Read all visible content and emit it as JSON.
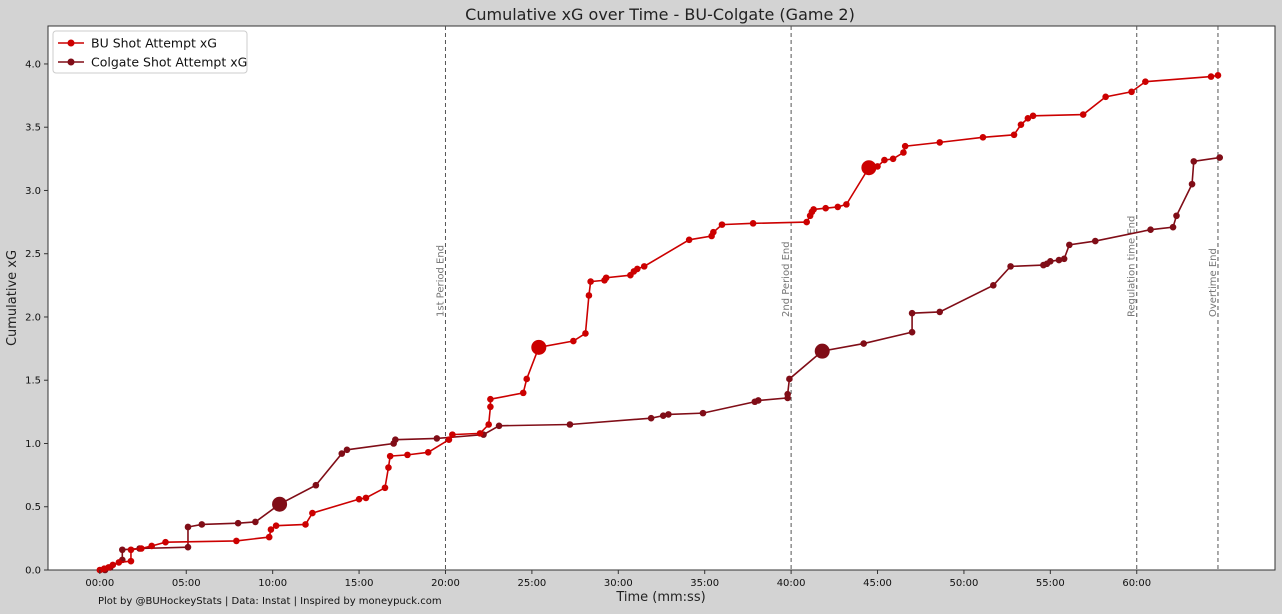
{
  "chart_data": {
    "type": "line",
    "title": "Cumulative xG over Time - BU-Colgate (Game 2)",
    "xlabel": "Time (mm:ss)",
    "ylabel": "Cumulative xG",
    "x_unit": "minutes",
    "xlim": [
      -3.0,
      68.0
    ],
    "ylim": [
      0,
      4.3
    ],
    "x_tick_values": [
      0,
      5,
      10,
      15,
      20,
      25,
      30,
      35,
      40,
      45,
      50,
      55,
      60
    ],
    "x_tick_labels": [
      "00:00",
      "05:00",
      "10:00",
      "15:00",
      "20:00",
      "25:00",
      "30:00",
      "35:00",
      "40:00",
      "45:00",
      "50:00",
      "55:00",
      "60:00"
    ],
    "y_ticks": [
      "0.0",
      "0.5",
      "1.0",
      "1.5",
      "2.0",
      "2.5",
      "3.0",
      "3.5",
      "4.0"
    ],
    "grid": false,
    "legend_position": "top-left",
    "vlines": [
      {
        "x": 20,
        "label": "1st Period End"
      },
      {
        "x": 40,
        "label": "2nd Period End"
      },
      {
        "x": 60,
        "label": "Regulation time End"
      },
      {
        "x": 64.7,
        "label": "Overtime End"
      }
    ],
    "series": [
      {
        "name": "BU Shot Attempt xG",
        "color": "#cc0000",
        "points": [
          [
            0.0,
            0.0
          ],
          [
            0.25,
            0.01
          ],
          [
            0.5,
            0.02
          ],
          [
            0.75,
            0.04
          ],
          [
            1.1,
            0.06
          ],
          [
            1.8,
            0.07
          ],
          [
            1.8,
            0.16
          ],
          [
            2.4,
            0.17
          ],
          [
            3.0,
            0.19
          ],
          [
            3.8,
            0.22
          ],
          [
            7.9,
            0.23
          ],
          [
            9.8,
            0.26
          ],
          [
            9.9,
            0.32
          ],
          [
            10.2,
            0.35
          ],
          [
            11.9,
            0.36
          ],
          [
            12.3,
            0.45
          ],
          [
            15.0,
            0.56
          ],
          [
            15.4,
            0.57
          ],
          [
            16.5,
            0.65
          ],
          [
            16.7,
            0.81
          ],
          [
            16.8,
            0.9
          ],
          [
            17.8,
            0.91
          ],
          [
            19.0,
            0.93
          ],
          [
            20.2,
            1.03
          ],
          [
            20.4,
            1.07
          ],
          [
            22.0,
            1.08
          ],
          [
            22.5,
            1.15
          ],
          [
            22.6,
            1.29
          ],
          [
            22.6,
            1.35
          ],
          [
            24.5,
            1.4
          ],
          [
            24.7,
            1.51
          ],
          [
            25.4,
            1.76
          ],
          [
            27.4,
            1.81
          ],
          [
            28.1,
            1.87
          ],
          [
            28.3,
            2.17
          ],
          [
            28.4,
            2.28
          ],
          [
            29.2,
            2.29
          ],
          [
            29.3,
            2.31
          ],
          [
            30.7,
            2.33
          ],
          [
            30.9,
            2.36
          ],
          [
            31.1,
            2.38
          ],
          [
            31.5,
            2.4
          ],
          [
            34.1,
            2.61
          ],
          [
            35.4,
            2.64
          ],
          [
            35.5,
            2.67
          ],
          [
            36.0,
            2.73
          ],
          [
            37.8,
            2.74
          ],
          [
            40.9,
            2.75
          ],
          [
            41.1,
            2.8
          ],
          [
            41.2,
            2.83
          ],
          [
            41.3,
            2.85
          ],
          [
            42.0,
            2.86
          ],
          [
            42.7,
            2.87
          ],
          [
            43.2,
            2.89
          ],
          [
            44.5,
            3.18
          ],
          [
            45.0,
            3.19
          ],
          [
            45.4,
            3.24
          ],
          [
            45.9,
            3.25
          ],
          [
            46.5,
            3.3
          ],
          [
            46.6,
            3.35
          ],
          [
            48.6,
            3.38
          ],
          [
            51.1,
            3.42
          ],
          [
            52.9,
            3.44
          ],
          [
            53.3,
            3.52
          ],
          [
            53.7,
            3.57
          ],
          [
            54.0,
            3.59
          ],
          [
            56.9,
            3.6
          ],
          [
            58.2,
            3.74
          ],
          [
            59.7,
            3.78
          ],
          [
            60.5,
            3.86
          ],
          [
            64.3,
            3.9
          ],
          [
            64.7,
            3.91
          ]
        ],
        "large_markers": [
          [
            25.4,
            1.76
          ],
          [
            44.5,
            3.18
          ]
        ]
      },
      {
        "name": "Colgate Shot Attempt xG",
        "color": "#800d17",
        "points": [
          [
            0.3,
            0.0
          ],
          [
            0.6,
            0.02
          ],
          [
            1.3,
            0.08
          ],
          [
            1.3,
            0.16
          ],
          [
            2.3,
            0.17
          ],
          [
            5.1,
            0.18
          ],
          [
            5.1,
            0.34
          ],
          [
            5.9,
            0.36
          ],
          [
            8.0,
            0.37
          ],
          [
            9.0,
            0.38
          ],
          [
            10.4,
            0.52
          ],
          [
            12.5,
            0.67
          ],
          [
            14.0,
            0.92
          ],
          [
            14.3,
            0.95
          ],
          [
            17.0,
            1.0
          ],
          [
            17.1,
            1.03
          ],
          [
            19.5,
            1.04
          ],
          [
            22.2,
            1.07
          ],
          [
            23.1,
            1.14
          ],
          [
            27.2,
            1.15
          ],
          [
            31.9,
            1.2
          ],
          [
            32.6,
            1.22
          ],
          [
            32.9,
            1.23
          ],
          [
            34.9,
            1.24
          ],
          [
            37.9,
            1.33
          ],
          [
            38.1,
            1.34
          ],
          [
            39.8,
            1.36
          ],
          [
            39.8,
            1.39
          ],
          [
            39.9,
            1.51
          ],
          [
            41.8,
            1.73
          ],
          [
            44.2,
            1.79
          ],
          [
            47.0,
            1.88
          ],
          [
            47.0,
            2.03
          ],
          [
            48.6,
            2.04
          ],
          [
            51.7,
            2.25
          ],
          [
            52.7,
            2.4
          ],
          [
            54.6,
            2.41
          ],
          [
            54.8,
            2.42
          ],
          [
            55.0,
            2.44
          ],
          [
            55.5,
            2.45
          ],
          [
            55.8,
            2.46
          ],
          [
            56.1,
            2.57
          ],
          [
            57.6,
            2.6
          ],
          [
            60.8,
            2.69
          ],
          [
            62.1,
            2.71
          ],
          [
            62.3,
            2.8
          ],
          [
            63.2,
            3.05
          ],
          [
            63.3,
            3.23
          ],
          [
            64.8,
            3.26
          ]
        ],
        "large_markers": [
          [
            10.4,
            0.52
          ],
          [
            41.8,
            1.73
          ]
        ]
      }
    ]
  },
  "footer_text": "Plot by @BUHockeyStats | Data: Instat | Inspired by moneypuck.com"
}
